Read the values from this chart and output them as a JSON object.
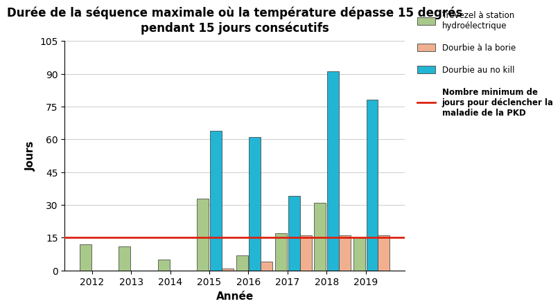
{
  "title": "Durée de la séquence maximale où la température dépasse 15 degrés\npendant 15 jours consécutifs",
  "xlabel": "Année",
  "ylabel": "Jours",
  "years": [
    2012,
    2013,
    2014,
    2015,
    2016,
    2017,
    2018,
    2019
  ],
  "trevezel": [
    12,
    11,
    5,
    33,
    7,
    17,
    31,
    15
  ],
  "dourbie_borie": [
    0,
    0,
    0,
    1,
    4,
    16,
    16,
    16
  ],
  "dourbie_nokill": [
    0,
    0,
    0,
    64,
    61,
    34,
    91,
    78
  ],
  "hline_y": 15,
  "ylim": [
    0,
    105
  ],
  "yticks": [
    0,
    15,
    30,
    45,
    60,
    75,
    90,
    105
  ],
  "color_trevezel": "#a8c98a",
  "color_borie": "#f0b090",
  "color_nokill": "#22b5d4",
  "color_hline": "#dd2211",
  "legend_trevezel": "Trévezel à station\nhydroélectrique",
  "legend_borie": "Dourbie à la borie",
  "legend_nokill": "Dourbie au no kill",
  "legend_hline": "Nombre minimum de\njours pour déclencher la\nmaladie de la PKD",
  "bar_width": 0.3,
  "title_fontsize": 12,
  "label_fontsize": 11,
  "tick_fontsize": 10,
  "xlim_left": 2011.3,
  "xlim_right": 2020.0
}
